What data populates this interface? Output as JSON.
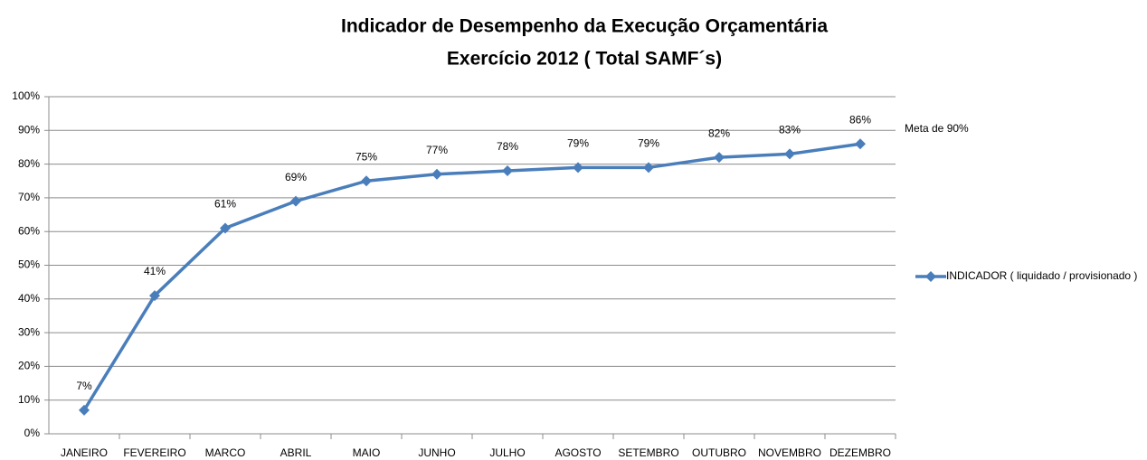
{
  "chart_data": {
    "type": "line",
    "title": "Indicador de Desempenho da Execução Orçamentária",
    "subtitle": "Exercício 2012 ( Total SAMF´s)",
    "annotation": "Meta de 90%",
    "categories": [
      "JANEIRO",
      "FEVEREIRO",
      "MARCO",
      "ABRIL",
      "MAIO",
      "JUNHO",
      "JULHO",
      "AGOSTO",
      "SETEMBRO",
      "OUTUBRO",
      "NOVEMBRO",
      "DEZEMBRO"
    ],
    "series": [
      {
        "name": "INDICADOR ( liquidado / provisionado )",
        "color": "#4a7ebb",
        "values": [
          7,
          41,
          61,
          69,
          75,
          77,
          78,
          79,
          79,
          82,
          83,
          86
        ],
        "value_labels": [
          "7%",
          "41%",
          "61%",
          "69%",
          "75%",
          "77%",
          "78%",
          "79%",
          "79%",
          "82%",
          "83%",
          "86%"
        ]
      }
    ],
    "ylim": [
      0,
      100
    ],
    "yticks": [
      {
        "value": 0,
        "label": "0%"
      },
      {
        "value": 10,
        "label": "10%"
      },
      {
        "value": 20,
        "label": "20%"
      },
      {
        "value": 30,
        "label": "30%"
      },
      {
        "value": 40,
        "label": "40%"
      },
      {
        "value": 50,
        "label": "50%"
      },
      {
        "value": 60,
        "label": "60%"
      },
      {
        "value": 70,
        "label": "70%"
      },
      {
        "value": 80,
        "label": "80%"
      },
      {
        "value": 90,
        "label": "90%"
      },
      {
        "value": 100,
        "label": "100%"
      }
    ],
    "grid": true,
    "legend": "right"
  }
}
